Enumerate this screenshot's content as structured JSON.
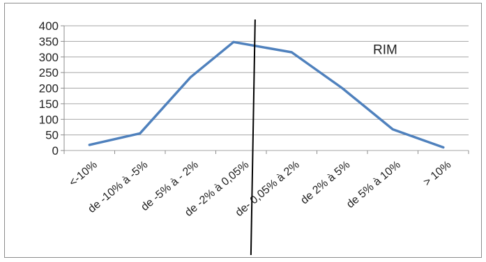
{
  "chart_data": {
    "type": "line",
    "title": "",
    "xlabel": "",
    "ylabel": "",
    "categories": [
      "<-10%",
      "de -10% à -5%",
      "de -5% à - 2%",
      "de -2% à 0,05%",
      "de- 0,05% à 2%",
      "de 2% à 5%",
      "de 5% à 10%",
      "> 10%"
    ],
    "ylim": [
      0,
      400
    ],
    "yticks": [
      0,
      50,
      100,
      150,
      200,
      250,
      300,
      350,
      400
    ],
    "grid": "horizontal",
    "legend_placement": "top-right",
    "series": [
      {
        "name": "RIM",
        "color": "#4f81bd",
        "points": [
          {
            "x": 0.0,
            "y": 18
          },
          {
            "x": 1.0,
            "y": 55
          },
          {
            "x": 2.0,
            "y": 235
          },
          {
            "x": 2.85,
            "y": 348
          },
          {
            "x": 4.0,
            "y": 315
          },
          {
            "x": 5.0,
            "y": 200
          },
          {
            "x": 6.0,
            "y": 68
          },
          {
            "x": 7.0,
            "y": 10
          }
        ]
      }
    ],
    "vertical_marker": {
      "x": 3.25,
      "color": "#000000"
    }
  }
}
